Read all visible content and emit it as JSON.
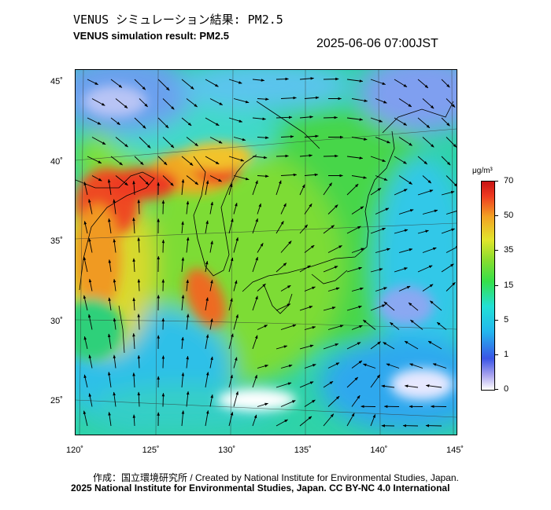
{
  "title_ja": "VENUS シミュレーション結果: PM2.5",
  "title_en": "VENUS simulation result: PM2.5",
  "timestamp": "2025-06-06 07:00JST",
  "x_ticks": [
    {
      "lon": 120,
      "label": "120˚"
    },
    {
      "lon": 125,
      "label": "125˚"
    },
    {
      "lon": 130,
      "label": "130˚"
    },
    {
      "lon": 135,
      "label": "135˚"
    },
    {
      "lon": 140,
      "label": "140˚"
    },
    {
      "lon": 145,
      "label": "145˚"
    }
  ],
  "y_ticks": [
    {
      "lat": 45,
      "label": "45˚"
    },
    {
      "lat": 40,
      "label": "40˚"
    },
    {
      "lat": 35,
      "label": "35˚"
    },
    {
      "lat": 30,
      "label": "30˚"
    },
    {
      "lat": 25,
      "label": "25˚"
    }
  ],
  "colorbar": {
    "unit": "μg/m³",
    "ticks": [
      {
        "value": 70,
        "label": "70"
      },
      {
        "value": 50,
        "label": "50"
      },
      {
        "value": 35,
        "label": "35"
      },
      {
        "value": 15,
        "label": "15"
      },
      {
        "value": 5,
        "label": "5"
      },
      {
        "value": 1,
        "label": "1"
      },
      {
        "value": 0,
        "label": "0"
      }
    ]
  },
  "credit_line1": "作成：国立環境研究所 / Created by National Institute for Environmental Studies, Japan.",
  "credit_line2": "2025 National Institute for Environmental Studies, Japan. CC BY-NC 4.0 International"
}
